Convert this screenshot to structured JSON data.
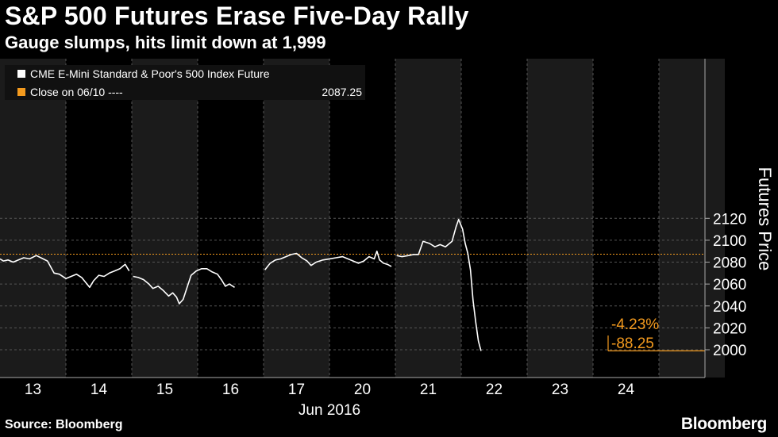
{
  "header": {
    "title": "S&P 500 Futures Erase Five-Day Rally",
    "subtitle": "Gauge slumps, hits limit down at 1,999"
  },
  "footer": {
    "source": "Source: Bloomberg",
    "brand": "Bloomberg"
  },
  "colors": {
    "background": "#000000",
    "line": "#ffffff",
    "reference": "#f39a1e",
    "shade": "#1b1b1b"
  },
  "chart_data": {
    "type": "line",
    "title": "S&P 500 Futures Erase Five-Day Rally",
    "subtitle": "Gauge slumps, hits limit down at 1,999",
    "ylabel": "Futures Price",
    "xlabel": "Jun 2016",
    "ylim": [
      1990,
      2130
    ],
    "yticks": [
      2000,
      2020,
      2040,
      2060,
      2080,
      2100,
      2120
    ],
    "xticks": [
      "13",
      "14",
      "15",
      "16",
      "17",
      "20",
      "21",
      "22",
      "23",
      "24"
    ],
    "grid": true,
    "legend": {
      "position": "top-left",
      "entries": [
        {
          "label": "CME E-Mini Standard & Poor's 500 Index Future",
          "value": ""
        },
        {
          "label": "Close on 06/10 ----",
          "value": "2087.25"
        }
      ]
    },
    "reference_line": {
      "name": "Close on 06/10",
      "value": 2087.25
    },
    "annotations": [
      {
        "text": "-4.23%"
      },
      {
        "text": "-88.25"
      }
    ],
    "series": [
      {
        "name": "CME E-Mini Standard & Poor's 500 Index Future",
        "sessions": [
          [
            [
              13,
              2083
            ],
            [
              13.05,
              2081
            ],
            [
              13.12,
              2082
            ],
            [
              13.2,
              2080
            ],
            [
              13.28,
              2082
            ],
            [
              13.36,
              2084
            ],
            [
              13.45,
              2083
            ],
            [
              13.55,
              2086
            ],
            [
              13.62,
              2084
            ],
            [
              13.72,
              2081
            ],
            [
              13.82,
              2070
            ],
            [
              13.9,
              2069
            ],
            [
              14,
              2065
            ],
            [
              14.08,
              2067
            ],
            [
              14.16,
              2069
            ],
            [
              14.24,
              2066
            ],
            [
              14.32,
              2060
            ],
            [
              14.36,
              2057
            ],
            [
              14.42,
              2063
            ],
            [
              14.5,
              2068
            ],
            [
              14.58,
              2067
            ],
            [
              14.66,
              2070
            ],
            [
              14.74,
              2072
            ],
            [
              14.82,
              2074
            ],
            [
              14.9,
              2078
            ],
            [
              14.96,
              2072
            ]
          ],
          [
            [
              15.02,
              2067
            ],
            [
              15.1,
              2066
            ],
            [
              15.18,
              2064
            ],
            [
              15.26,
              2060
            ],
            [
              15.32,
              2056
            ],
            [
              15.4,
              2058
            ],
            [
              15.48,
              2054
            ],
            [
              15.56,
              2049
            ],
            [
              15.62,
              2052
            ],
            [
              15.68,
              2048
            ],
            [
              15.72,
              2042
            ],
            [
              15.78,
              2046
            ],
            [
              15.84,
              2057
            ],
            [
              15.9,
              2068
            ],
            [
              15.98,
              2072
            ],
            [
              16.06,
              2074
            ],
            [
              16.14,
              2074
            ],
            [
              16.22,
              2071
            ],
            [
              16.3,
              2069
            ],
            [
              16.36,
              2064
            ],
            [
              16.42,
              2058
            ],
            [
              16.48,
              2060
            ],
            [
              16.56,
              2057
            ]
          ],
          [
            [
              17.02,
              2073
            ],
            [
              17.1,
              2079
            ],
            [
              17.18,
              2082
            ],
            [
              17.26,
              2083
            ],
            [
              17.34,
              2085
            ],
            [
              17.42,
              2087
            ],
            [
              17.5,
              2088
            ],
            [
              17.58,
              2084
            ],
            [
              17.66,
              2081
            ],
            [
              17.72,
              2077
            ],
            [
              17.8,
              2080
            ],
            [
              17.9,
              2082
            ],
            [
              18,
              2083
            ],
            [
              18.1,
              2084
            ],
            [
              18.2,
              2085
            ],
            [
              18.28,
              2083
            ],
            [
              18.36,
              2081
            ],
            [
              18.44,
              2079
            ],
            [
              18.52,
              2081
            ],
            [
              18.6,
              2085
            ],
            [
              18.68,
              2083
            ],
            [
              18.72,
              2090
            ],
            [
              18.76,
              2082
            ],
            [
              18.82,
              2079
            ],
            [
              18.88,
              2078
            ],
            [
              18.94,
              2076
            ]
          ],
          [
            [
              19.02,
              2086
            ],
            [
              19.1,
              2085
            ],
            [
              19.2,
              2086
            ],
            [
              19.28,
              2087
            ],
            [
              19.35,
              2087
            ],
            [
              19.42,
              2099
            ],
            [
              19.52,
              2097
            ],
            [
              19.6,
              2094
            ],
            [
              19.68,
              2096
            ],
            [
              19.76,
              2094
            ],
            [
              19.86,
              2099
            ],
            [
              19.92,
              2112
            ],
            [
              19.96,
              2119
            ],
            [
              20.02,
              2110
            ],
            [
              20.06,
              2097
            ],
            [
              20.1,
              2088
            ],
            [
              20.14,
              2073
            ],
            [
              20.18,
              2045
            ],
            [
              20.22,
              2025
            ],
            [
              20.26,
              2008
            ],
            [
              20.3,
              1999
            ]
          ]
        ]
      }
    ]
  }
}
